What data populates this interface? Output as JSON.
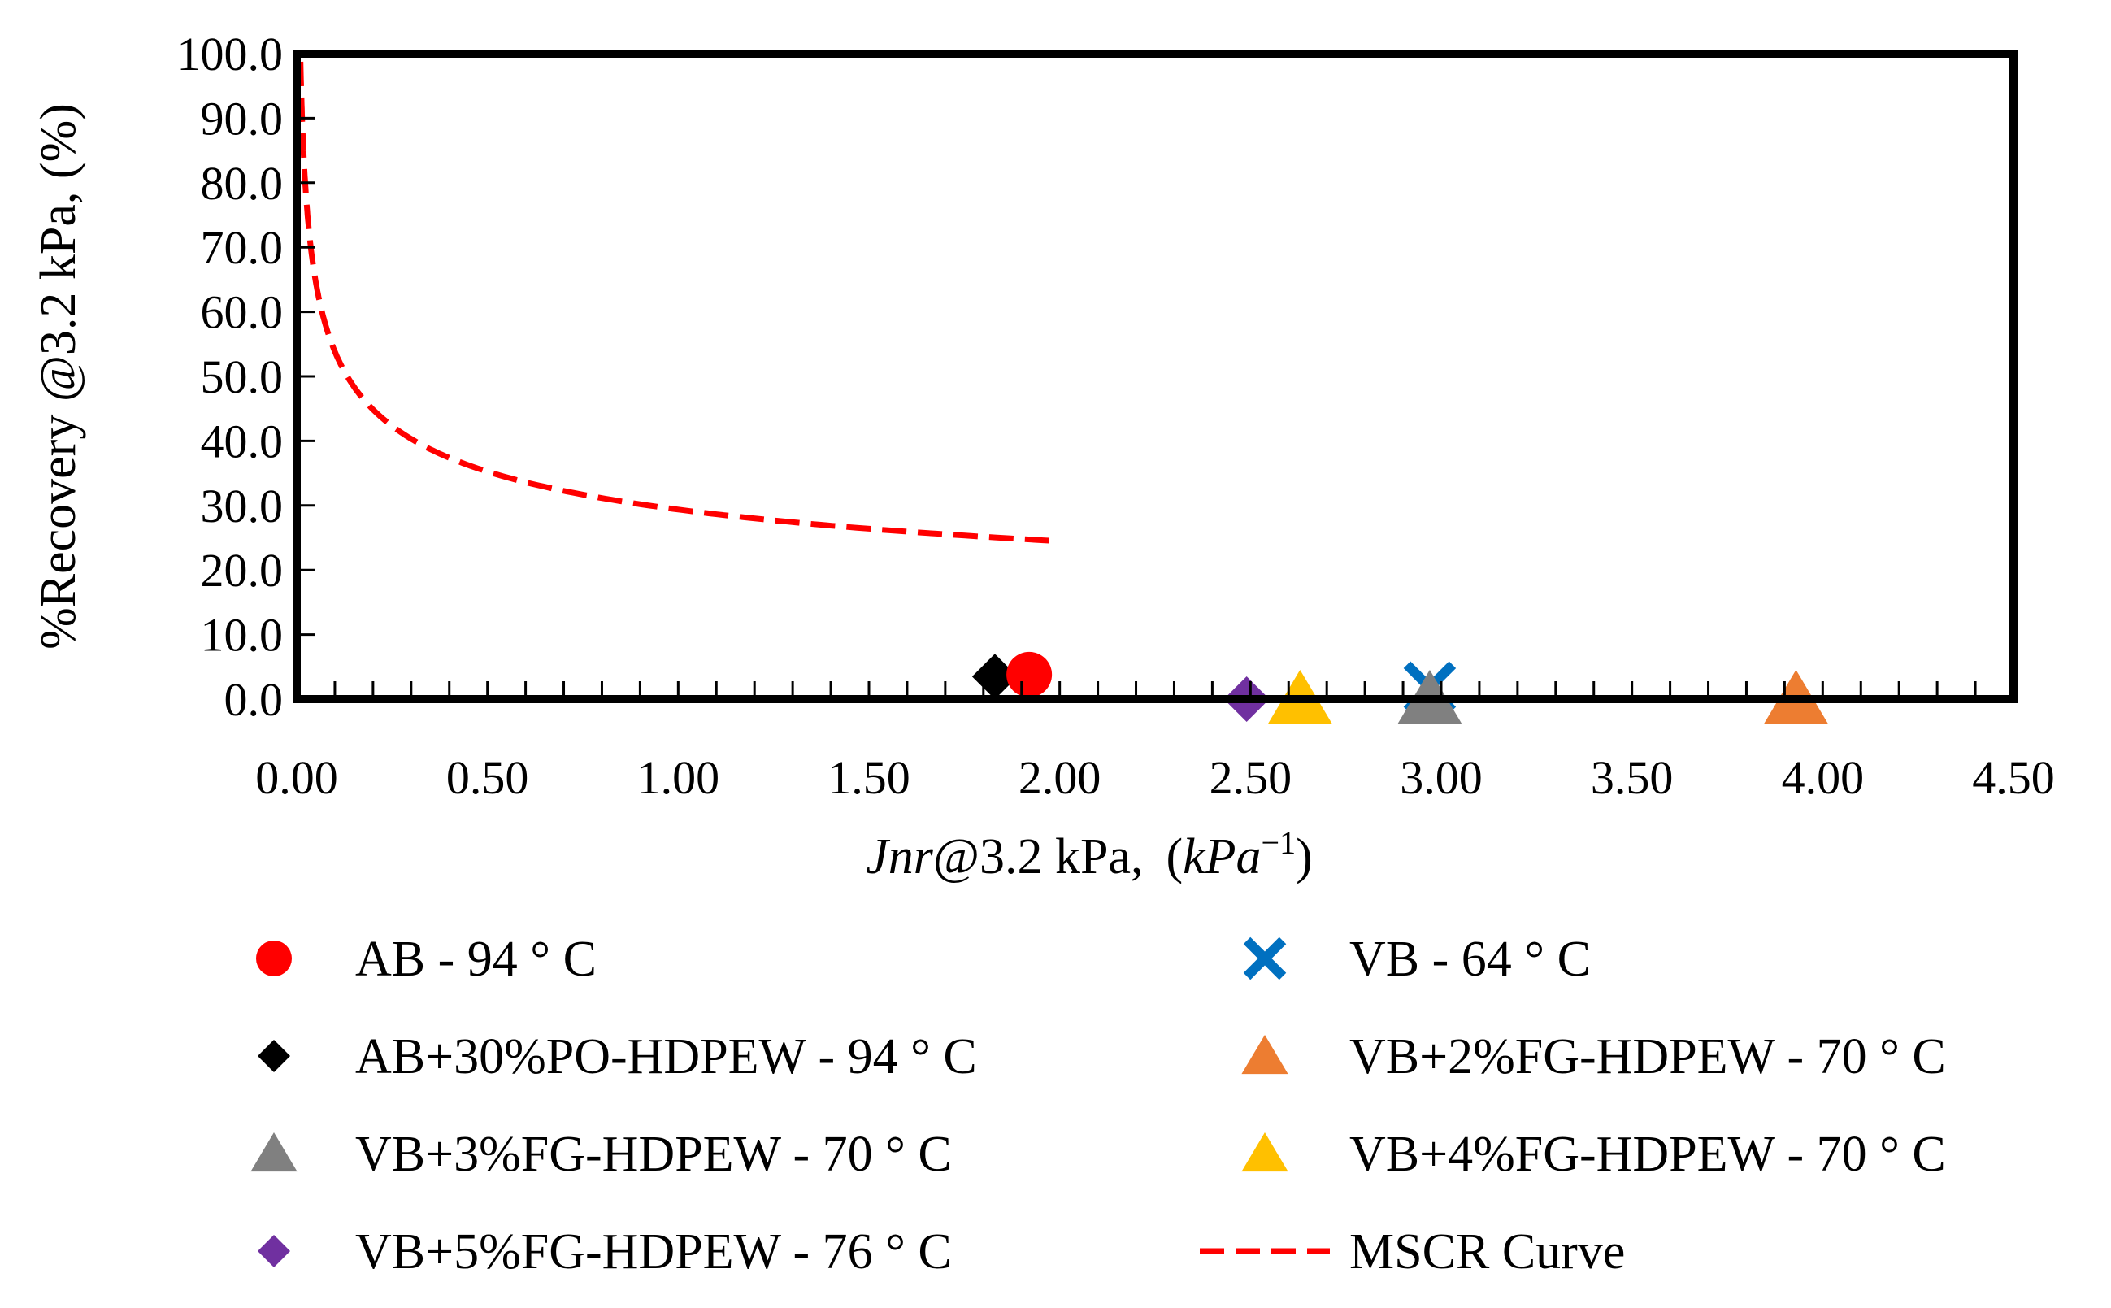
{
  "chart_data": {
    "type": "scatter",
    "title": "",
    "xlabel": {
      "italic": "Jnr",
      "plain": "@3.2 kPa,",
      "unit_open": "(",
      "unit_base": "kPa",
      "unit_exp": "−1",
      "unit_close": ")"
    },
    "ylabel": "%Recovery @3.2 kPa, (%)",
    "xlim": [
      0,
      4.5
    ],
    "ylim": [
      0,
      100
    ],
    "x_ticks": [
      "0.00",
      "0.50",
      "1.00",
      "1.50",
      "2.00",
      "2.50",
      "3.00",
      "3.50",
      "4.00",
      "4.50"
    ],
    "y_ticks": [
      "0.0",
      "10.0",
      "20.0",
      "30.0",
      "40.0",
      "50.0",
      "60.0",
      "70.0",
      "80.0",
      "90.0",
      "100.0"
    ],
    "grid": false,
    "legend_position": "bottom",
    "series": [
      {
        "name": "AB - 94 ° C",
        "marker": "circle",
        "color": "#FF0000",
        "x": 1.92,
        "y": 3.8
      },
      {
        "name": "VB - 64 ° C",
        "marker": "x",
        "color": "#0070C0",
        "x": 2.97,
        "y": 1.8
      },
      {
        "name": "AB+30%PO-HDPEW - 94 ° C",
        "marker": "diamond",
        "color": "#000000",
        "x": 1.83,
        "y": 3.5
      },
      {
        "name": "VB+2%FG-HDPEW - 70 ° C",
        "marker": "triangle",
        "color": "#ED7D31",
        "x": 3.93,
        "y": 0.0
      },
      {
        "name": "VB+3%FG-HDPEW - 70 ° C",
        "marker": "triangle",
        "color": "#808080",
        "x": 2.97,
        "y": 0.0
      },
      {
        "name": "VB+4%FG-HDPEW - 70 ° C",
        "marker": "triangle",
        "color": "#FFC000",
        "x": 2.63,
        "y": 0.0
      },
      {
        "name": "VB+5%FG-HDPEW - 76 ° C",
        "marker": "diamond",
        "color": "#7030A0",
        "x": 2.49,
        "y": 0.0
      },
      {
        "name": "MSCR Curve",
        "marker": "dashed-line",
        "color": "#FF0000",
        "curve": "29.371 * x^(-0.2633)",
        "x_range": [
          0.01,
          2.0
        ]
      }
    ]
  }
}
